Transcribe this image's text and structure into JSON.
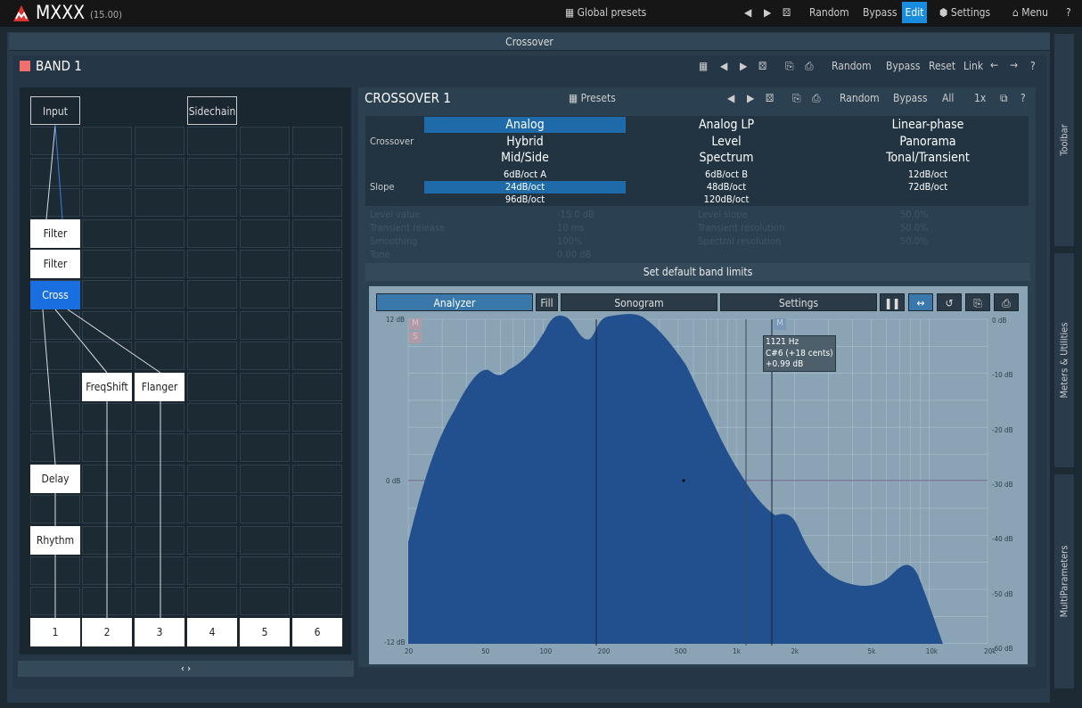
{
  "topbar": {
    "title": "MXXX",
    "version": "(15.00)",
    "global_presets": "Global presets",
    "random": "Random",
    "bypass": "Bypass",
    "edit": "Edit",
    "settings": "Settings",
    "menu": "Menu"
  },
  "crossover_bar": "Crossover",
  "band": {
    "title": "BAND 1",
    "color": "#f07070",
    "random": "Random",
    "bypass": "Bypass",
    "reset": "Reset",
    "link": "Link"
  },
  "graph": {
    "input": "Input",
    "sidechain": "Sidechain",
    "nodes": {
      "filter1": "Filter",
      "filter2": "Filter",
      "cross": "Cross",
      "freqshift": "FreqShift",
      "flanger": "Flanger",
      "delay": "Delay",
      "rhythm": "Rhythm"
    },
    "outputs": [
      "1",
      "2",
      "3",
      "4",
      "5",
      "6"
    ],
    "expand": "‹ ›"
  },
  "crossover": {
    "title": "CROSSOVER 1",
    "presets": "Presets",
    "random": "Random",
    "bypass": "Bypass",
    "all": "All",
    "speed": "1x",
    "crossover_label": "Crossover",
    "types": [
      "Analog",
      "Analog LP",
      "Linear-phase",
      "Hybrid",
      "Level",
      "Panorama",
      "Mid/Side",
      "Spectrum",
      "Tonal/Transient"
    ],
    "selected_type": "Analog",
    "slope_label": "Slope",
    "slopes": [
      "6dB/oct A",
      "6dB/oct B",
      "12dB/oct",
      "24dB/oct",
      "48dB/oct",
      "72dB/oct",
      "96dB/oct",
      "120dB/oct"
    ],
    "selected_slope": "24dB/oct",
    "params": [
      {
        "label": "Level value",
        "value": "-15.0 dB"
      },
      {
        "label": "Transient release",
        "value": "10 ms"
      },
      {
        "label": "Smoothing",
        "value": "100%"
      },
      {
        "label": "Tone",
        "value": "0.00 dB"
      },
      {
        "label": "Level slope",
        "value": "50.0%"
      },
      {
        "label": "Transient resolution",
        "value": "50.0%"
      },
      {
        "label": "Spectral resolution",
        "value": "50.0%"
      }
    ],
    "set_default": "Set default band limits"
  },
  "analyzer": {
    "analyzer": "Analyzer",
    "fill": "Fill",
    "sonogram": "Sonogram",
    "settings": "Settings",
    "left_axis": [
      "12 dB",
      "0 dB",
      "-12 dB"
    ],
    "right_axis": [
      "0 dB",
      "-10 dB",
      "-20 dB",
      "-30 dB",
      "-40 dB",
      "-50 dB",
      "-60 dB"
    ],
    "x_axis": [
      "20",
      "50",
      "100",
      "200",
      "500",
      "1k",
      "2k",
      "5k",
      "10k",
      "20k"
    ],
    "tooltip": {
      "freq": "1121 Hz",
      "note": "C#6 (+18 cents)",
      "gain": "+0.99 dB"
    },
    "ms_m": "M",
    "ms_s": "S",
    "fill_color": "#22508f"
  },
  "side_tabs": [
    "Toolbar",
    "Meters & Utilities",
    "MultiParameters"
  ]
}
